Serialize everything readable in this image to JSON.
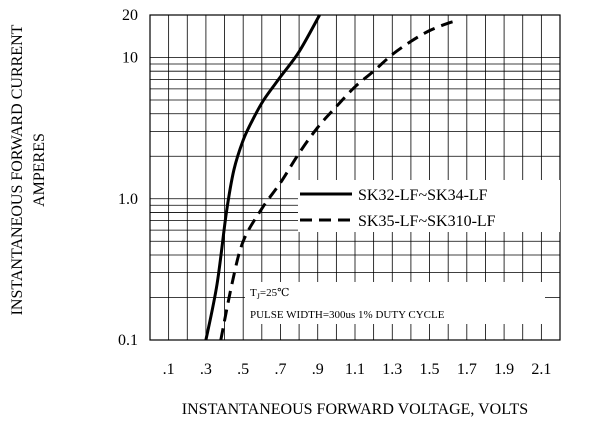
{
  "chart_data": {
    "type": "line",
    "ylabel_lines": [
      "INSTANTANEOUS FORWARD CURRENT",
      "AMPERES"
    ],
    "xlabel": "INSTANTANEOUS FORWARD VOLTAGE, VOLTS",
    "x_tick_labels": [
      ".1",
      ".3",
      ".5",
      ".7",
      ".9",
      "1.1",
      "1.3",
      "1.5",
      "1.7",
      "1.9",
      "2.1"
    ],
    "x_tick_values": [
      0.1,
      0.3,
      0.5,
      0.7,
      0.9,
      1.1,
      1.3,
      1.5,
      1.7,
      1.9,
      2.1
    ],
    "xlim": [
      0.0,
      2.2
    ],
    "y_scale": "log",
    "ylim": [
      0.1,
      20
    ],
    "y_tick_labels": [
      "20",
      "10",
      "1.0",
      "0.1"
    ],
    "y_tick_values": [
      20,
      10,
      1.0,
      0.1
    ],
    "grid": true,
    "legend_position": "center-right",
    "series": [
      {
        "name": "SK32-LF~SK34-LF",
        "line_style": "solid",
        "points": [
          [
            0.3,
            0.1
          ],
          [
            0.36,
            0.25
          ],
          [
            0.41,
            0.8
          ],
          [
            0.45,
            1.6
          ],
          [
            0.5,
            2.6
          ],
          [
            0.55,
            3.6
          ],
          [
            0.61,
            5.0
          ],
          [
            0.7,
            7.3
          ],
          [
            0.8,
            11.0
          ],
          [
            0.91,
            20.0
          ]
        ]
      },
      {
        "name": "SK35-LF~SK310-LF",
        "line_style": "dashed",
        "points": [
          [
            0.38,
            0.1
          ],
          [
            0.44,
            0.25
          ],
          [
            0.5,
            0.5
          ],
          [
            0.6,
            0.85
          ],
          [
            0.7,
            1.3
          ],
          [
            0.8,
            2.1
          ],
          [
            0.9,
            3.2
          ],
          [
            1.0,
            4.5
          ],
          [
            1.1,
            6.2
          ],
          [
            1.2,
            8.0
          ],
          [
            1.3,
            10.5
          ],
          [
            1.4,
            13.0
          ],
          [
            1.5,
            15.5
          ],
          [
            1.6,
            17.5
          ],
          [
            1.65,
            18.2
          ]
        ]
      }
    ],
    "annotations": [
      "T<sub>J</sub>=25℃",
      "PULSE WIDTH=300us 1% DUTY CYCLE"
    ]
  }
}
